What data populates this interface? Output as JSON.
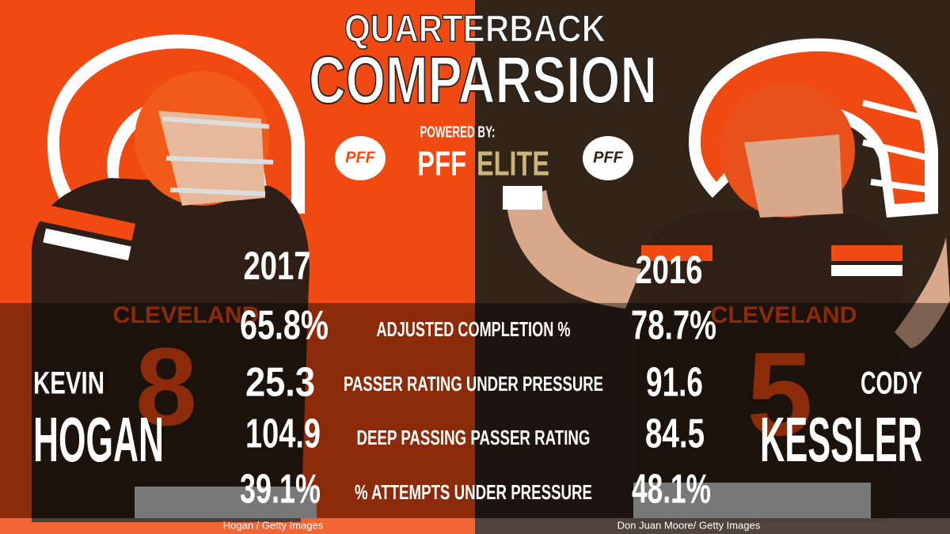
{
  "title": {
    "line1": "QUARTERBACK",
    "line2": "COMPARSION"
  },
  "sponsor": {
    "powered_by": "POWERED BY:",
    "brand": "PFF",
    "tier": "ELITE",
    "logo_left": "PFF",
    "logo_right": "PFF"
  },
  "players": [
    {
      "first_name": "KEVIN",
      "last_name": "HOGAN",
      "season": "2017",
      "jersey_team": "CLEVELAND",
      "jersey_number": "8",
      "photo_credit": "Hogan / Getty Images"
    },
    {
      "first_name": "CODY",
      "last_name": "KESSLER",
      "season": "2016",
      "jersey_team": "CLEVELAND",
      "jersey_number": "5",
      "photo_credit": "Don Juan Moore/ Getty Images"
    }
  ],
  "stats": [
    {
      "label": "ADJUSTED COMPLETION %",
      "left": "65.8%",
      "right": "78.7%"
    },
    {
      "label": "PASSER RATING UNDER PRESSURE",
      "left": "25.3",
      "right": "91.6"
    },
    {
      "label": "DEEP PASSING PASSER RATING",
      "left": "104.9",
      "right": "84.5"
    },
    {
      "label": "% ATTEMPTS UNDER PRESSURE",
      "left": "39.1%",
      "right": "48.1%"
    }
  ]
}
